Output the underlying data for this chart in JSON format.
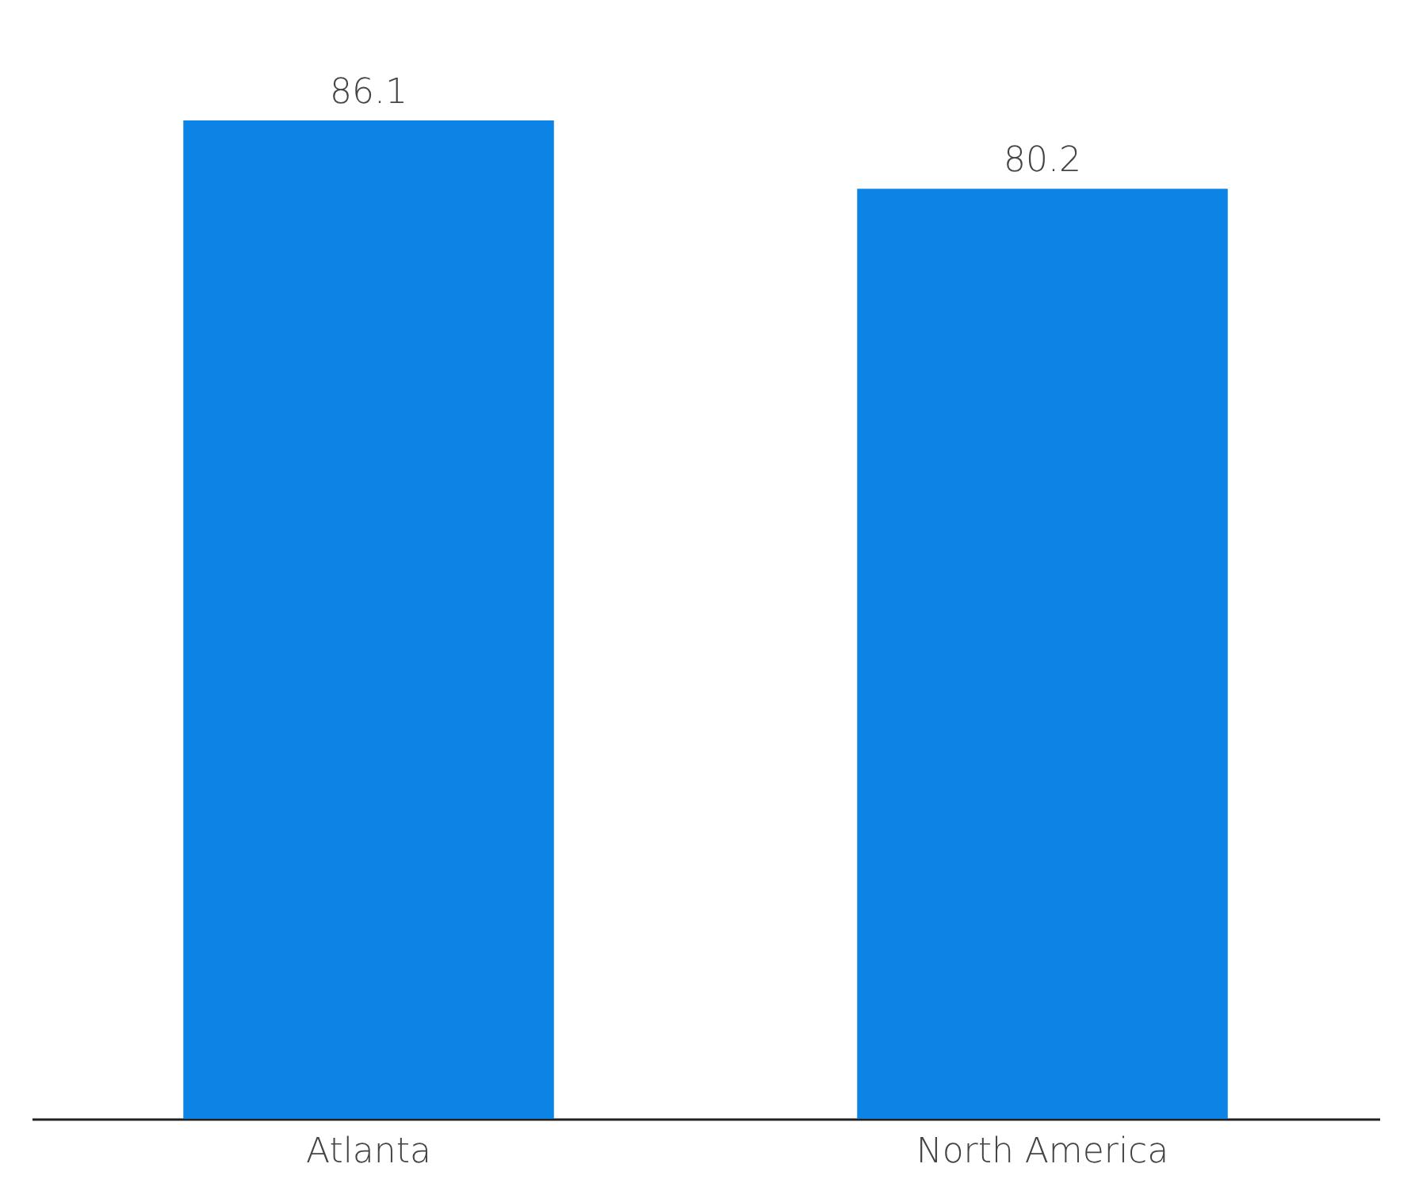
{
  "chart_data": {
    "type": "bar",
    "categories": [
      "Atlanta",
      "North America"
    ],
    "values": [
      86.1,
      80.2
    ],
    "color": "#0b84e5",
    "data_labels": true,
    "grid": false
  }
}
